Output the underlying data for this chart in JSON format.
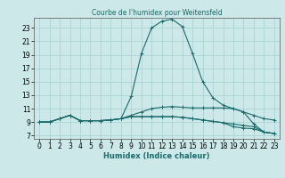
{
  "title": "Courbe de l'humidex pour Weitensfeld",
  "xlabel": "Humidex (Indice chaleur)",
  "background_color": "#cce8e8",
  "grid_color": "#aad4d4",
  "line_color": "#1a6b6b",
  "xlim": [
    -0.5,
    23.5
  ],
  "ylim": [
    6.5,
    24.5
  ],
  "yticks": [
    7,
    9,
    11,
    13,
    15,
    17,
    19,
    21,
    23
  ],
  "xticks": [
    0,
    1,
    2,
    3,
    4,
    5,
    6,
    7,
    8,
    9,
    10,
    11,
    12,
    13,
    14,
    15,
    16,
    17,
    18,
    19,
    20,
    21,
    22,
    23
  ],
  "series": [
    [
      9.0,
      9.0,
      9.5,
      10.0,
      9.2,
      9.2,
      9.2,
      9.3,
      9.5,
      12.8,
      19.2,
      23.0,
      24.0,
      24.3,
      23.2,
      19.2,
      15.0,
      12.6,
      11.5,
      11.0,
      10.5,
      8.7,
      7.5,
      7.3
    ],
    [
      9.0,
      9.0,
      9.5,
      10.0,
      9.2,
      9.2,
      9.2,
      9.3,
      9.5,
      10.0,
      10.5,
      11.0,
      11.2,
      11.3,
      11.2,
      11.1,
      11.1,
      11.1,
      11.1,
      11.0,
      10.5,
      10.0,
      9.5,
      9.3
    ],
    [
      9.0,
      9.0,
      9.5,
      10.0,
      9.2,
      9.2,
      9.2,
      9.3,
      9.5,
      9.8,
      9.8,
      9.8,
      9.8,
      9.8,
      9.7,
      9.5,
      9.3,
      9.1,
      8.9,
      8.7,
      8.5,
      8.3,
      7.5,
      7.3
    ],
    [
      9.0,
      9.0,
      9.5,
      10.0,
      9.2,
      9.2,
      9.2,
      9.3,
      9.5,
      9.8,
      9.8,
      9.8,
      9.8,
      9.8,
      9.7,
      9.5,
      9.3,
      9.1,
      8.9,
      8.3,
      8.1,
      8.0,
      7.5,
      7.3
    ]
  ]
}
